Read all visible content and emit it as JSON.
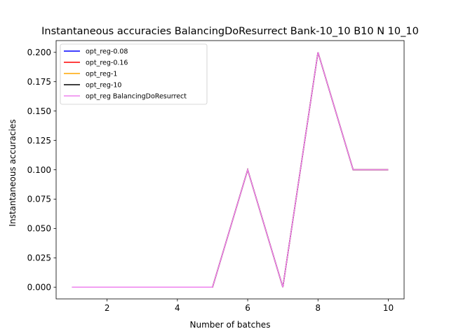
{
  "chart_data": {
    "type": "line",
    "title": "Instantaneous accuracies BalancingDoResurrect Bank-10_10 B10 N 10_10",
    "xlabel": "Number of batches",
    "ylabel": "Instantaneous accuracies",
    "x": [
      1,
      2,
      3,
      4,
      5,
      6,
      7,
      8,
      9,
      10
    ],
    "xlim": [
      0.55,
      10.45
    ],
    "ylim": [
      -0.01,
      0.21
    ],
    "xticks": [
      2,
      4,
      6,
      8,
      10
    ],
    "xtick_labels": [
      "2",
      "4",
      "6",
      "8",
      "10"
    ],
    "yticks": [
      0.0,
      0.025,
      0.05,
      0.075,
      0.1,
      0.125,
      0.15,
      0.175,
      0.2
    ],
    "ytick_labels": [
      "0.000",
      "0.025",
      "0.050",
      "0.075",
      "0.100",
      "0.125",
      "0.150",
      "0.175",
      "0.200"
    ],
    "grid": false,
    "legend_position": "top-left",
    "series": [
      {
        "name": "opt_reg-0.08",
        "color": "#0000ff",
        "values": [
          0,
          0,
          0,
          0,
          0,
          0.1,
          0,
          0.2,
          0.1,
          0.1
        ]
      },
      {
        "name": "opt_reg-0.16",
        "color": "#ff0000",
        "values": [
          0,
          0,
          0,
          0,
          0,
          0.1,
          0,
          0.2,
          0.1,
          0.1
        ]
      },
      {
        "name": "opt_reg-1",
        "color": "#ffa500",
        "values": [
          0,
          0,
          0,
          0,
          0,
          0.1,
          0,
          0.2,
          0.1,
          0.1
        ]
      },
      {
        "name": "opt_reg-10",
        "color": "#000000",
        "values": [
          0,
          0,
          0,
          0,
          0,
          0.1,
          0,
          0.2,
          0.1,
          0.1
        ]
      },
      {
        "name": "opt_reg BalancingDoResurrect",
        "color": "#ee82ee",
        "values": [
          0,
          0,
          0,
          0,
          0,
          0.1,
          0,
          0.2,
          0.1,
          0.1
        ]
      }
    ]
  }
}
